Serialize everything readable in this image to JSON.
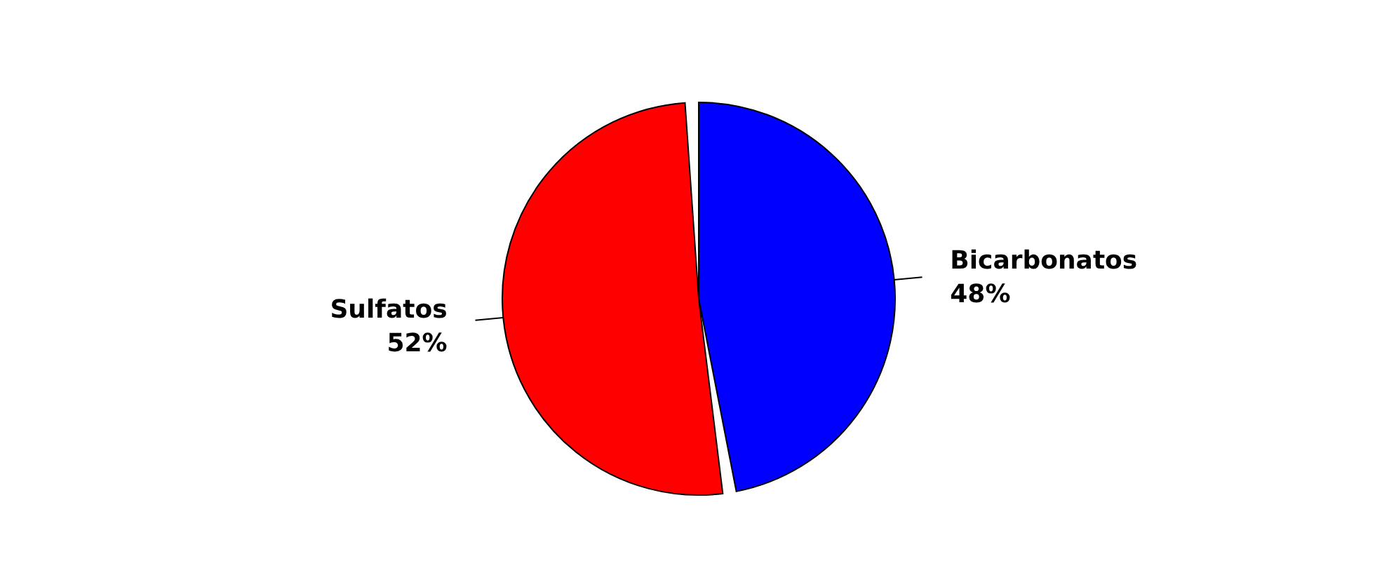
{
  "chart_data": {
    "type": "pie",
    "categories": [
      "Bicarbonatos",
      "Sulfatos"
    ],
    "values": [
      48,
      52
    ],
    "colors": [
      "#0000ff",
      "#ff0000"
    ],
    "value_labels": [
      "48%",
      "52%"
    ],
    "legend": false
  }
}
